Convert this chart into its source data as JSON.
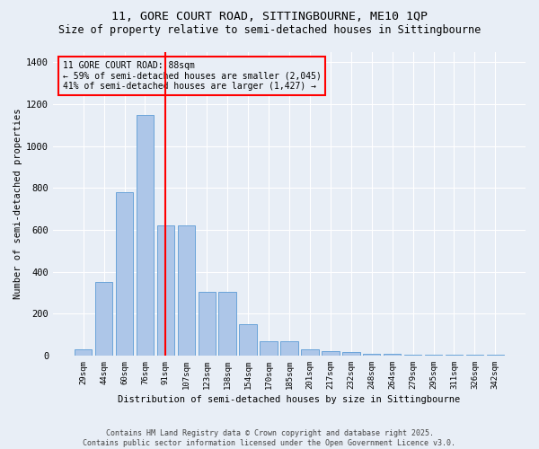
{
  "title": "11, GORE COURT ROAD, SITTINGBOURNE, ME10 1QP",
  "subtitle": "Size of property relative to semi-detached houses in Sittingbourne",
  "xlabel": "Distribution of semi-detached houses by size in Sittingbourne",
  "ylabel": "Number of semi-detached properties",
  "categories": [
    "29sqm",
    "44sqm",
    "60sqm",
    "76sqm",
    "91sqm",
    "107sqm",
    "123sqm",
    "138sqm",
    "154sqm",
    "170sqm",
    "185sqm",
    "201sqm",
    "217sqm",
    "232sqm",
    "248sqm",
    "264sqm",
    "279sqm",
    "295sqm",
    "311sqm",
    "326sqm",
    "342sqm"
  ],
  "values": [
    28,
    350,
    780,
    1150,
    620,
    620,
    305,
    305,
    150,
    70,
    70,
    28,
    20,
    15,
    10,
    10,
    5,
    5,
    5,
    5,
    5
  ],
  "bar_color": "#adc6e8",
  "bar_edge_color": "#5b9bd5",
  "vline_x": 4.0,
  "vline_color": "red",
  "annotation_title": "11 GORE COURT ROAD: 88sqm",
  "annotation_line2": "← 59% of semi-detached houses are smaller (2,045)",
  "annotation_line3": "41% of semi-detached houses are larger (1,427) →",
  "annotation_box_color": "red",
  "ylim": [
    0,
    1450
  ],
  "yticks": [
    0,
    200,
    400,
    600,
    800,
    1000,
    1200,
    1400
  ],
  "footer_line1": "Contains HM Land Registry data © Crown copyright and database right 2025.",
  "footer_line2": "Contains public sector information licensed under the Open Government Licence v3.0.",
  "bg_color": "#e8eef6",
  "title_fontsize": 9.5,
  "subtitle_fontsize": 8.5
}
